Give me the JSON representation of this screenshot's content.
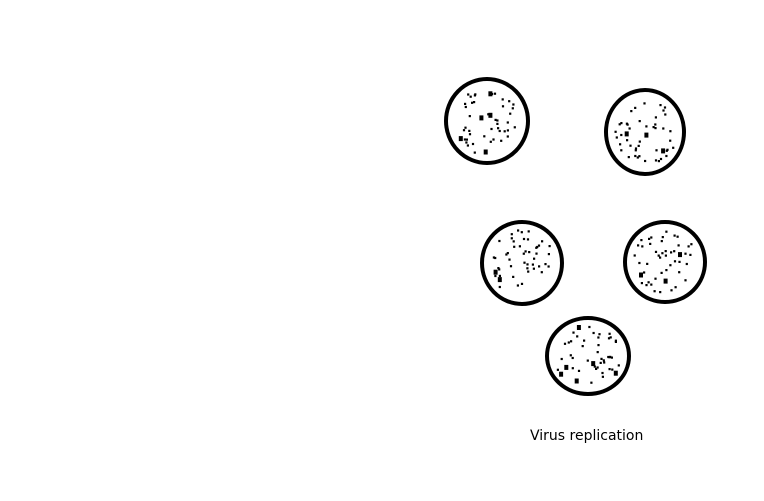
{
  "caption": "Virus replication",
  "colors": {
    "outline": "#000000",
    "fill": "#ffffff"
  },
  "virus_count": 5
}
